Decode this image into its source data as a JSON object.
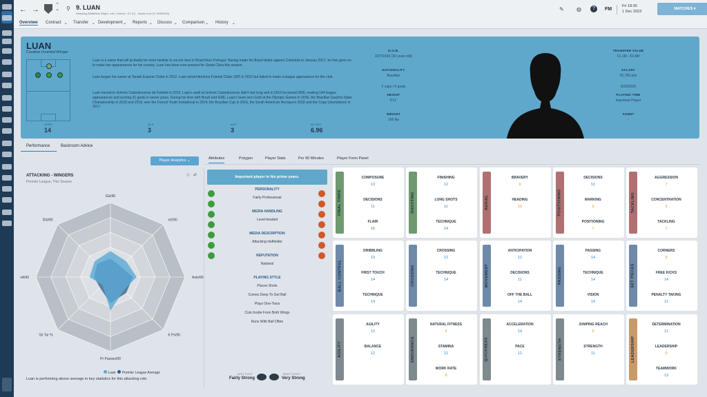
{
  "header": {
    "title": "9. LUAN",
    "subtitle": "Attacking Midfielder (Right, Left, Centre) / ST (C) - Santa Cruz (© 99999000)",
    "date_day": "Fri 18:30",
    "date": "1 Dec 2023",
    "fm_label": "FM",
    "matches_button": "MATCHES"
  },
  "nav_tabs": [
    "Overview",
    "Contract",
    "Transfer",
    "Development",
    "Reports",
    "Discuss",
    "Comparison",
    "History"
  ],
  "hero": {
    "name": "Luan",
    "role": "Creative Inverted Winger",
    "bio": [
      "Luan is a name that will probably be more familiar to soccer fans in Brazil than Portugal. Having made his Brazil debut against Colombia in January 2017, he has gone on to make two appearances for his country. Luan has been ever-present for Santa Clara this season.",
      "Luan began his career at Tanabi Esporte Clube in 2012. Luan joined América Futebol Clube (SP) in 2012 but failed to make a league appearance for the club.",
      "Luan moved to Grêmio Catanduvense de Futebol in 2013. Luan's spell at Grêmio Catanduvense didn't last long and in 2013 he joined GRE, making 144 league appearances and scoring 31 goals in seven years. During his time with Brazil and GRE, Luan's team won Gold at the Olympic Games in 2016, the Brazilian Gaúcho State Championship in 2018 and 2019, won the French Youth Invitational in 2014, the Brazilian Cup in 2016, the South American Recopa in 2018 and the Copa Libertadores in 2017."
    ],
    "stats": [
      {
        "label": "APPS",
        "value": "14"
      },
      {
        "label": "GLS",
        "value": "3"
      },
      {
        "label": "AST",
        "value": "3"
      },
      {
        "label": "AV RAT",
        "value": "6.96"
      }
    ],
    "info_left": [
      {
        "label": "D.O.B.",
        "value": "3/27/1993 (30 years old)"
      },
      {
        "label": "NATIONALITY",
        "value": "Brazilian"
      },
      {
        "label": "NATIONALITY_SUB",
        "value": "2 caps / 0 goals"
      },
      {
        "label": "HEIGHT",
        "value": "5'11\""
      },
      {
        "label": "WEIGHT",
        "value": "156 lbs"
      }
    ],
    "info_right": [
      {
        "label": "TRANSFER VALUE",
        "value": "€1.1M - €2.4M"
      },
      {
        "label": "SALARY",
        "value": "€5,750 p/w"
      },
      {
        "label": "SALARY_SUB",
        "value": "6/30/2026"
      },
      {
        "label": "PLAYING TIME",
        "value": "Important Player"
      },
      {
        "label": "AGENT",
        "value": "-"
      }
    ]
  },
  "subtabs": [
    "Performance",
    "Backroom Advice"
  ],
  "analytics_button": "Player Analytics",
  "attr_tabs": [
    "Attributes",
    "Polygon",
    "Player Stats",
    "Per 90 Minutes",
    "Player Form Panel"
  ],
  "radar": {
    "title": "ATTACKING - WINGERS",
    "subtitle": "Premier League, This Season",
    "axes": [
      "Gls/90",
      "xG/90",
      "Asts/90",
      "K Ps/90",
      "Pr Passes/90",
      "Sh Tar %",
      "xA/90",
      "Drb/90"
    ],
    "legend_player": "Luan",
    "legend_avg": "Premier League Average",
    "footer": "Luan is performing above average in key statistics for this attacking role.",
    "player_values": [
      0.35,
      0.3,
      0.35,
      0.25,
      0.45,
      0.15,
      0.28,
      0.3
    ],
    "avg_values": [
      0.25,
      0.2,
      0.3,
      0.3,
      0.35,
      0.2,
      0.22,
      0.25
    ],
    "colors": {
      "player": "#5aa9d6",
      "avg": "#2d5c8a"
    }
  },
  "personality": {
    "headline": "Important player in his prime years.",
    "sections": [
      {
        "title": "PERSONALITY",
        "lines": [
          "Fairly Professional"
        ]
      },
      {
        "title": "MEDIA HANDLING",
        "lines": [
          "Level-headed"
        ]
      },
      {
        "title": "MEDIA DESCRIPTION",
        "lines": [
          "Attacking midfielder"
        ]
      },
      {
        "title": "REPUTATION",
        "lines": [
          "National"
        ]
      },
      {
        "title": "PLAYING STYLE",
        "lines": [
          "Places Shots",
          "Comes Deep To Get Ball",
          "Plays One-Twos",
          "Cuts Inside From Both Wings",
          "Runs With Ball Often"
        ]
      }
    ],
    "left_foot_label": "LEFT FOOT",
    "left_foot": "Fairly Strong",
    "right_foot_label": "RIGHT FOOT",
    "right_foot": "Very Strong"
  },
  "attributes": [
    {
      "cat": "FINAL THIRD",
      "color": "#6f9a6f",
      "items": [
        [
          "COMPOSURE",
          "13"
        ],
        [
          "DECISIONS",
          "11"
        ],
        [
          "FLAIR",
          "16"
        ]
      ]
    },
    {
      "cat": "SHOOTING",
      "color": "#6f9a6f",
      "items": [
        [
          "FINISHING",
          "12"
        ],
        [
          "LONG SHOTS",
          "11"
        ],
        [
          "TECHNIQUE",
          "14"
        ]
      ]
    },
    {
      "cat": "AERIAL",
      "color": "#b07070",
      "items": [
        [
          "BRAVERY",
          "9"
        ],
        [
          "HEADING",
          "10"
        ]
      ]
    },
    {
      "cat": "POSITIONING",
      "color": "#b07070",
      "items": [
        [
          "DECISIONS",
          "11"
        ],
        [
          "MARKING",
          "6"
        ],
        [
          "POSITIONING",
          "7"
        ]
      ]
    },
    {
      "cat": "TACKLING",
      "color": "#b07070",
      "items": [
        [
          "AGGRESSION",
          "7"
        ],
        [
          "CONCENTRATION",
          "6"
        ],
        [
          "TACKLING",
          "7"
        ]
      ]
    },
    {
      "cat": "BALL CONTROL",
      "color": "#6f8aa8",
      "items": [
        [
          "DRIBBLING",
          "13"
        ],
        [
          "FIRST TOUCH",
          "14"
        ],
        [
          "TECHNIQUE",
          "14"
        ]
      ]
    },
    {
      "cat": "CROSSING",
      "color": "#6f8aa8",
      "items": [
        [
          "CROSSING",
          "12"
        ],
        [
          "TECHNIQUE",
          "14"
        ]
      ]
    },
    {
      "cat": "MOVEMENT",
      "color": "#6f8aa8",
      "items": [
        [
          "ANTICIPATION",
          "12"
        ],
        [
          "DECISIONS",
          "11"
        ],
        [
          "OFF THE BALL",
          "14"
        ]
      ]
    },
    {
      "cat": "PASSING",
      "color": "#6f8aa8",
      "items": [
        [
          "PASSING",
          "14"
        ],
        [
          "TECHNIQUE",
          "14"
        ],
        [
          "VISION",
          "14"
        ]
      ]
    },
    {
      "cat": "SET PIECES",
      "color": "#6f8aa8",
      "items": [
        [
          "CORNERS",
          "9"
        ],
        [
          "FREE KICKS",
          "14"
        ],
        [
          "PENALTY TAKING",
          "11"
        ]
      ]
    },
    {
      "cat": "AGILITY",
      "color": "#7f8a8f",
      "items": [
        [
          "AGILITY",
          "12"
        ],
        [
          "BALANCE",
          "12"
        ]
      ]
    },
    {
      "cat": "ENDURANCE",
      "color": "#7f8a8f",
      "items": [
        [
          "NATURAL FITNESS",
          "9"
        ],
        [
          "STAMINA",
          "12"
        ],
        [
          "WORK RATE",
          "8"
        ]
      ]
    },
    {
      "cat": "QUICKNESS",
      "color": "#7f8a8f",
      "items": [
        [
          "ACCELERATION",
          "14"
        ],
        [
          "PACE",
          "12"
        ]
      ]
    },
    {
      "cat": "STRENGTH",
      "color": "#7f8a8f",
      "items": [
        [
          "JUMPING REACH",
          "9"
        ],
        [
          "STRENGTH",
          "11"
        ]
      ]
    },
    {
      "cat": "LEADERSHIP",
      "color": "#c89a6a",
      "items": [
        [
          "DETERMINATION",
          "11"
        ],
        [
          "LEADERSHIP",
          "9"
        ],
        [
          "TEAMWORK",
          "13"
        ]
      ]
    }
  ]
}
